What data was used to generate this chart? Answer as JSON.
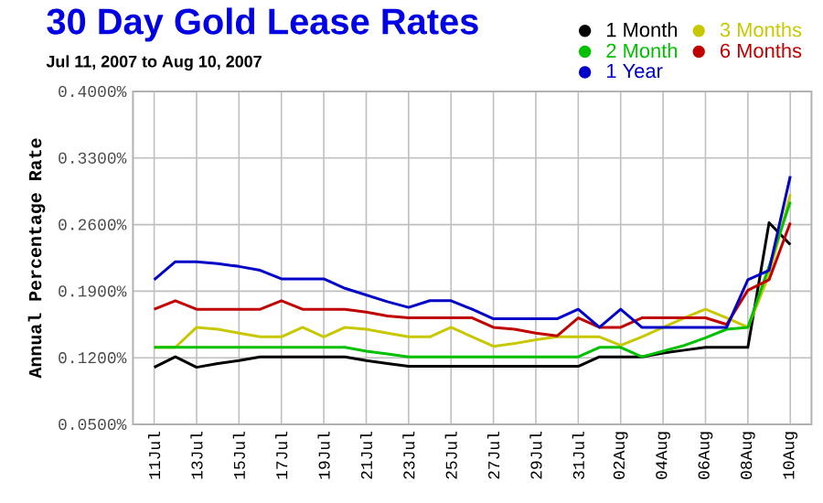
{
  "chart_data": {
    "type": "line",
    "title": "30 Day Gold Lease Rates",
    "subtitle": "Jul 11, 2007 to Aug 10, 2007",
    "ylabel": "Annual Percentage Rate",
    "x": [
      "2007-07-11",
      "2007-07-12",
      "2007-07-13",
      "2007-07-14",
      "2007-07-15",
      "2007-07-16",
      "2007-07-17",
      "2007-07-18",
      "2007-07-19",
      "2007-07-20",
      "2007-07-21",
      "2007-07-22",
      "2007-07-23",
      "2007-07-24",
      "2007-07-25",
      "2007-07-26",
      "2007-07-27",
      "2007-07-28",
      "2007-07-29",
      "2007-07-30",
      "2007-07-31",
      "2007-08-01",
      "2007-08-02",
      "2007-08-03",
      "2007-08-04",
      "2007-08-05",
      "2007-08-06",
      "2007-08-07",
      "2007-08-08",
      "2007-08-09",
      "2007-08-10"
    ],
    "series": [
      {
        "name": "1 Month",
        "color": "#000000",
        "values": [
          0.11,
          0.121,
          0.11,
          0.114,
          0.117,
          0.121,
          0.121,
          0.121,
          0.121,
          0.121,
          0.117,
          0.114,
          0.111,
          0.111,
          0.111,
          0.111,
          0.111,
          0.111,
          0.111,
          0.111,
          0.111,
          0.121,
          0.121,
          0.121,
          0.125,
          0.128,
          0.131,
          0.131,
          0.131,
          0.262,
          0.239
        ]
      },
      {
        "name": "3 Months",
        "color": "#c8c800",
        "values": [
          0.131,
          0.131,
          0.152,
          0.15,
          0.146,
          0.142,
          0.142,
          0.152,
          0.142,
          0.152,
          0.15,
          0.146,
          0.142,
          0.142,
          0.152,
          0.142,
          0.132,
          0.135,
          0.139,
          0.142,
          0.142,
          0.142,
          0.133,
          0.142,
          0.152,
          0.162,
          0.171,
          0.162,
          0.152,
          0.207,
          0.292
        ]
      },
      {
        "name": "2 Month",
        "color": "#00c000",
        "values": [
          0.131,
          0.131,
          0.131,
          0.131,
          0.131,
          0.131,
          0.131,
          0.131,
          0.131,
          0.131,
          0.127,
          0.124,
          0.121,
          0.121,
          0.121,
          0.121,
          0.121,
          0.121,
          0.121,
          0.121,
          0.121,
          0.131,
          0.131,
          0.121,
          0.127,
          0.133,
          0.141,
          0.15,
          0.152,
          0.216,
          0.284
        ]
      },
      {
        "name": "6 Months",
        "color": "#c00000",
        "values": [
          0.171,
          0.18,
          0.171,
          0.171,
          0.171,
          0.171,
          0.18,
          0.171,
          0.171,
          0.171,
          0.168,
          0.164,
          0.162,
          0.162,
          0.162,
          0.162,
          0.152,
          0.15,
          0.146,
          0.143,
          0.162,
          0.152,
          0.152,
          0.162,
          0.162,
          0.162,
          0.162,
          0.155,
          0.191,
          0.202,
          0.262
        ]
      },
      {
        "name": "1 Year",
        "color": "#0000c8",
        "values": [
          0.202,
          0.221,
          0.221,
          0.219,
          0.216,
          0.212,
          0.203,
          0.203,
          0.203,
          0.193,
          0.186,
          0.179,
          0.173,
          0.18,
          0.18,
          0.171,
          0.161,
          0.161,
          0.161,
          0.161,
          0.171,
          0.152,
          0.171,
          0.152,
          0.152,
          0.152,
          0.152,
          0.152,
          0.202,
          0.212,
          0.311
        ]
      }
    ],
    "xlim": [
      "2007-07-10",
      "2007-08-11"
    ],
    "xticks": [
      {
        "value": "2007-07-11",
        "label": "11Jul"
      },
      {
        "value": "2007-07-13",
        "label": "13Jul"
      },
      {
        "value": "2007-07-15",
        "label": "15Jul"
      },
      {
        "value": "2007-07-17",
        "label": "17Jul"
      },
      {
        "value": "2007-07-19",
        "label": "19Jul"
      },
      {
        "value": "2007-07-21",
        "label": "21Jul"
      },
      {
        "value": "2007-07-23",
        "label": "23Jul"
      },
      {
        "value": "2007-07-25",
        "label": "25Jul"
      },
      {
        "value": "2007-07-27",
        "label": "27Jul"
      },
      {
        "value": "2007-07-29",
        "label": "29Jul"
      },
      {
        "value": "2007-07-31",
        "label": "31Jul"
      },
      {
        "value": "2007-08-02",
        "label": "02Aug"
      },
      {
        "value": "2007-08-04",
        "label": "04Aug"
      },
      {
        "value": "2007-08-06",
        "label": "06Aug"
      },
      {
        "value": "2007-08-08",
        "label": "08Aug"
      },
      {
        "value": "2007-08-10",
        "label": "10Aug"
      }
    ],
    "ylim": [
      0.05,
      0.4
    ],
    "yticks": [
      {
        "value": 0.05,
        "label": "0.0500%"
      },
      {
        "value": 0.12,
        "label": "0.1200%"
      },
      {
        "value": 0.19,
        "label": "0.1900%"
      },
      {
        "value": 0.26,
        "label": "0.2600%"
      },
      {
        "value": 0.33,
        "label": "0.3300%"
      },
      {
        "value": 0.4,
        "label": "0.4000%"
      }
    ],
    "grid": true,
    "legend": "top right",
    "marker": "none",
    "line_style": "solid"
  }
}
